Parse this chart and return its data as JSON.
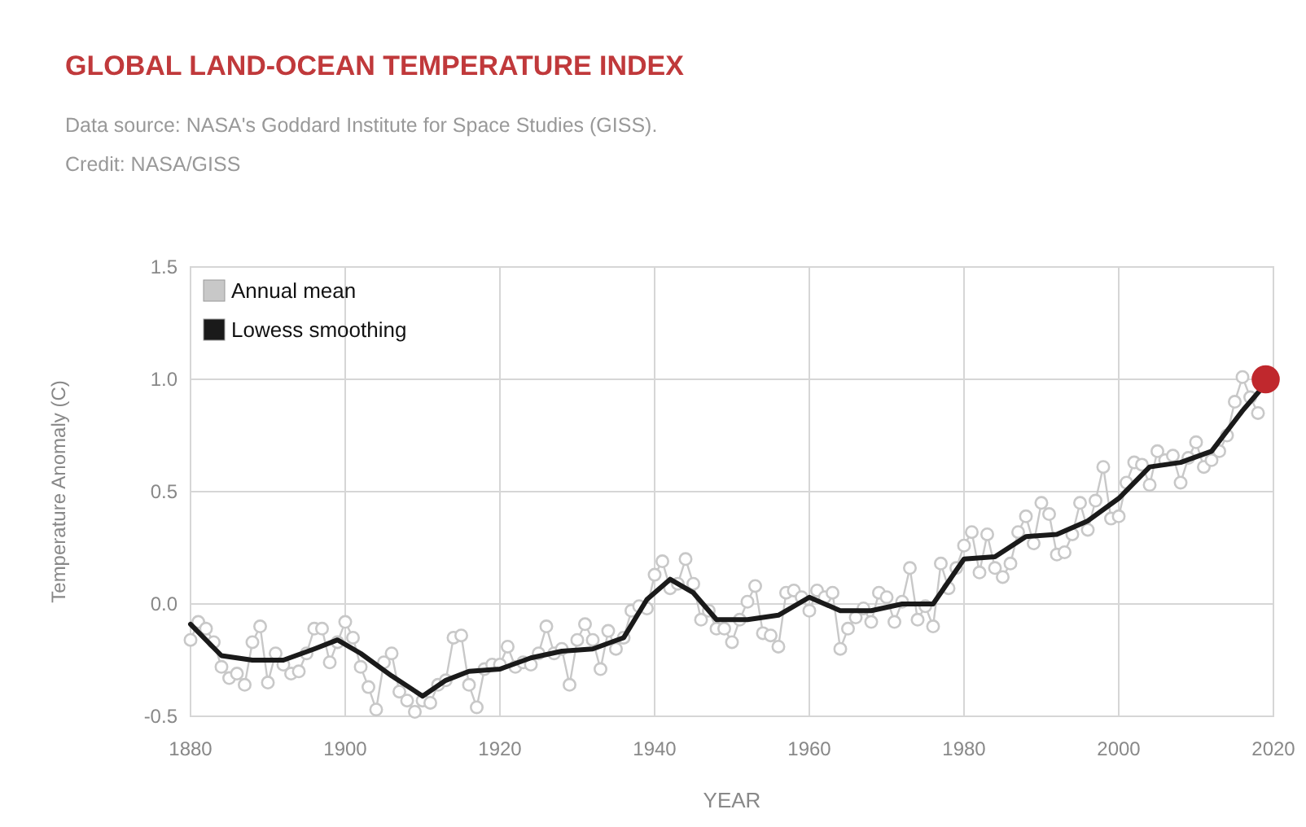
{
  "chart_data": {
    "type": "line",
    "title": "GLOBAL LAND-OCEAN TEMPERATURE INDEX",
    "subtitle": "Data source: NASA's Goddard Institute for Space Studies (GISS).",
    "annotations": [
      "Credit: NASA/GISS"
    ],
    "xlabel": "YEAR",
    "ylabel": "Temperature Anomaly (C)",
    "xlim": [
      1880,
      2020
    ],
    "xticks": [
      1880,
      1900,
      1920,
      1940,
      1960,
      1980,
      2000,
      2020
    ],
    "ylim": [
      -0.5,
      1.5
    ],
    "yticks": [
      -0.5,
      {
        "value": 0,
        "label": "0.0"
      },
      0.5,
      {
        "value": 1,
        "label": "1.0"
      },
      1.5
    ],
    "grid": true,
    "legend": "top left",
    "series": [
      {
        "name": "Annual mean",
        "marker": "circle",
        "color": "#c8c8c8",
        "x": [
          1880,
          1881,
          1882,
          1883,
          1884,
          1885,
          1886,
          1887,
          1888,
          1889,
          1890,
          1891,
          1892,
          1893,
          1894,
          1895,
          1896,
          1897,
          1898,
          1899,
          1900,
          1901,
          1902,
          1903,
          1904,
          1905,
          1906,
          1907,
          1908,
          1909,
          1910,
          1911,
          1912,
          1913,
          1914,
          1915,
          1916,
          1917,
          1918,
          1919,
          1920,
          1921,
          1922,
          1923,
          1924,
          1925,
          1926,
          1927,
          1928,
          1929,
          1930,
          1931,
          1932,
          1933,
          1934,
          1935,
          1936,
          1937,
          1938,
          1939,
          1940,
          1941,
          1942,
          1943,
          1944,
          1945,
          1946,
          1947,
          1948,
          1949,
          1950,
          1951,
          1952,
          1953,
          1954,
          1955,
          1956,
          1957,
          1958,
          1959,
          1960,
          1961,
          1962,
          1963,
          1964,
          1965,
          1966,
          1967,
          1968,
          1969,
          1970,
          1971,
          1972,
          1973,
          1974,
          1975,
          1976,
          1977,
          1978,
          1979,
          1980,
          1981,
          1982,
          1983,
          1984,
          1985,
          1986,
          1987,
          1988,
          1989,
          1990,
          1991,
          1992,
          1993,
          1994,
          1995,
          1996,
          1997,
          1998,
          1999,
          2000,
          2001,
          2002,
          2003,
          2004,
          2005,
          2006,
          2007,
          2008,
          2009,
          2010,
          2011,
          2012,
          2013,
          2014,
          2015,
          2016,
          2017,
          2018
        ],
        "values": [
          -0.16,
          -0.08,
          -0.11,
          -0.17,
          -0.28,
          -0.33,
          -0.31,
          -0.36,
          -0.17,
          -0.1,
          -0.35,
          -0.22,
          -0.27,
          -0.31,
          -0.3,
          -0.22,
          -0.11,
          -0.11,
          -0.26,
          -0.17,
          -0.08,
          -0.15,
          -0.28,
          -0.37,
          -0.47,
          -0.26,
          -0.22,
          -0.39,
          -0.43,
          -0.48,
          -0.43,
          -0.44,
          -0.36,
          -0.34,
          -0.15,
          -0.14,
          -0.36,
          -0.46,
          -0.29,
          -0.27,
          -0.27,
          -0.19,
          -0.28,
          -0.26,
          -0.27,
          -0.22,
          -0.1,
          -0.22,
          -0.2,
          -0.36,
          -0.16,
          -0.09,
          -0.16,
          -0.29,
          -0.12,
          -0.2,
          -0.15,
          -0.03,
          -0.01,
          -0.02,
          0.13,
          0.19,
          0.07,
          0.09,
          0.2,
          0.09,
          -0.07,
          -0.03,
          -0.11,
          -0.11,
          -0.17,
          -0.07,
          0.01,
          0.08,
          -0.13,
          -0.14,
          -0.19,
          0.05,
          0.06,
          0.03,
          -0.03,
          0.06,
          0.03,
          0.05,
          -0.2,
          -0.11,
          -0.06,
          -0.02,
          -0.08,
          0.05,
          0.03,
          -0.08,
          0.01,
          0.16,
          -0.07,
          -0.01,
          -0.1,
          0.18,
          0.07,
          0.16,
          0.26,
          0.32,
          0.14,
          0.31,
          0.16,
          0.12,
          0.18,
          0.32,
          0.39,
          0.27,
          0.45,
          0.4,
          0.22,
          0.23,
          0.31,
          0.45,
          0.33,
          0.46,
          0.61,
          0.38,
          0.39,
          0.54,
          0.63,
          0.62,
          0.53,
          0.68,
          0.64,
          0.66,
          0.54,
          0.65,
          0.72,
          0.61,
          0.64,
          0.68,
          0.75,
          0.9,
          1.01,
          0.92,
          0.85
        ]
      },
      {
        "name": "Lowess smoothing",
        "marker": "none",
        "color": "#1a1a1a",
        "x": [
          1880,
          1884,
          1888,
          1892,
          1896,
          1899,
          1902,
          1906,
          1910,
          1913,
          1916,
          1920,
          1924,
          1928,
          1932,
          1936,
          1939,
          1942,
          1945,
          1948,
          1952,
          1956,
          1960,
          1964,
          1968,
          1972,
          1976,
          1980,
          1984,
          1988,
          1992,
          1996,
          2000,
          2004,
          2008,
          2012,
          2016,
          2019
        ],
        "values": [
          -0.09,
          -0.23,
          -0.25,
          -0.25,
          -0.2,
          -0.16,
          -0.22,
          -0.32,
          -0.41,
          -0.34,
          -0.3,
          -0.29,
          -0.24,
          -0.21,
          -0.2,
          -0.15,
          0.02,
          0.11,
          0.05,
          -0.07,
          -0.07,
          -0.05,
          0.03,
          -0.03,
          -0.03,
          0.0,
          0.0,
          0.2,
          0.21,
          0.3,
          0.31,
          0.37,
          0.47,
          0.61,
          0.63,
          0.68,
          0.86,
          0.98
        ]
      },
      {
        "type": "scatter",
        "marker": "circle",
        "color": "#c0282d",
        "x": [
          2019
        ],
        "values": [
          1.0
        ]
      }
    ]
  }
}
